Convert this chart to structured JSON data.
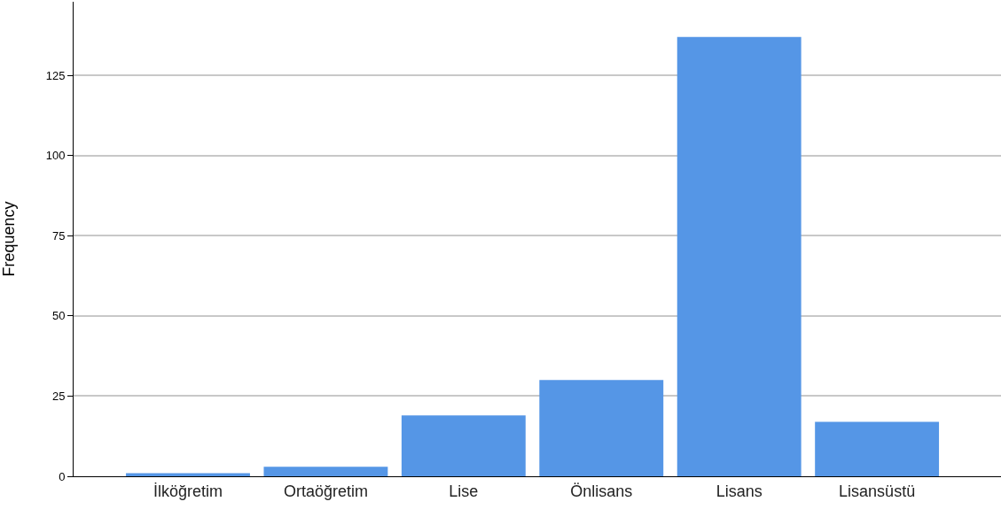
{
  "chart_data": {
    "type": "bar",
    "ylabel": "Frequency",
    "categories": [
      "İlköğretim",
      "Ortaöğretim",
      "Lise",
      "Önlisans",
      "Lisans",
      "Lisansüstü"
    ],
    "values": [
      1,
      3,
      19,
      30,
      137,
      17
    ],
    "color": "#5596e6",
    "ylim": [
      0,
      148
    ],
    "yticks": [
      0,
      25,
      50,
      75,
      100,
      125
    ],
    "grid": "y"
  }
}
